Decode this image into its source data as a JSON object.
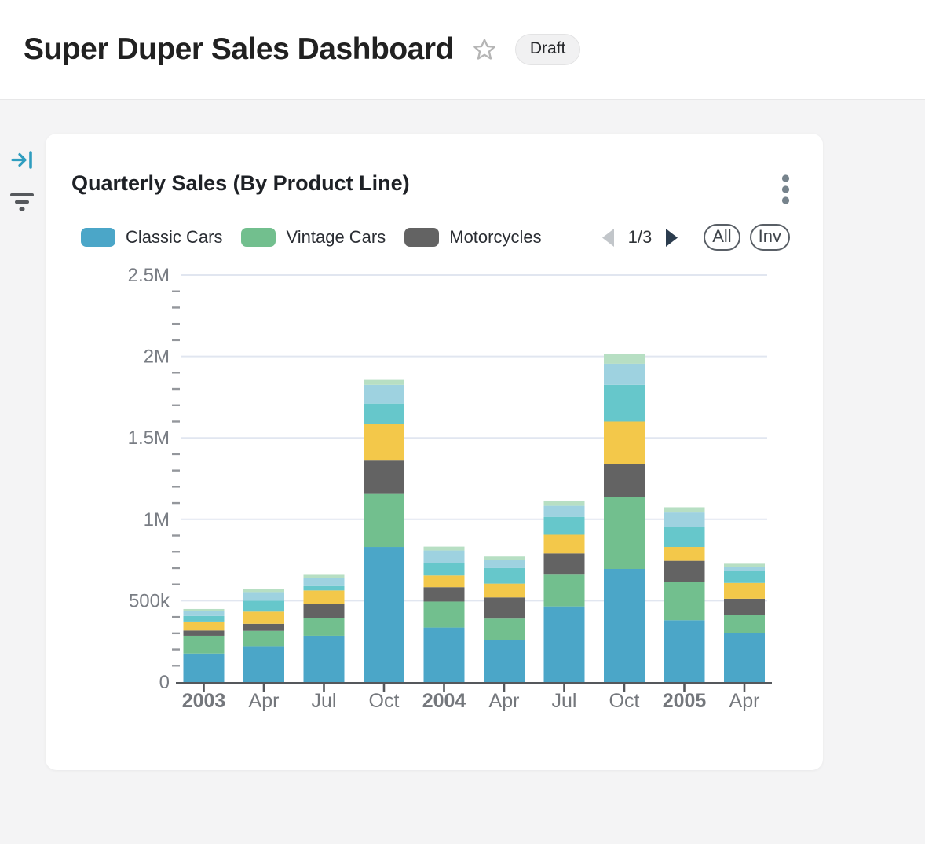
{
  "header": {
    "title": "Super Duper Sales Dashboard",
    "badge": "Draft"
  },
  "rail": {
    "icons": [
      "collapse-panel-right",
      "filter-lines"
    ]
  },
  "card": {
    "title": "Quarterly Sales (By Product Line)",
    "menu_icon": "kebab-vertical",
    "legend": {
      "items": [
        {
          "label": "Classic Cars",
          "color": "#4ba6c8"
        },
        {
          "label": "Vintage Cars",
          "color": "#72bf8e"
        },
        {
          "label": "Motorcycles",
          "color": "#636363"
        }
      ],
      "pagination": {
        "label": "1/3",
        "prev_enabled": false,
        "next_enabled": true
      },
      "buttons": [
        {
          "label": "All"
        },
        {
          "label": "Inv"
        }
      ]
    }
  },
  "chart_data": {
    "type": "bar",
    "stacked": true,
    "title": "Quarterly Sales (By Product Line)",
    "legend_position": "top",
    "legend_note": "legend paginated 1/3; series 4-7 colors visible but unlabeled on this page",
    "grid": true,
    "ylim": [
      0,
      2500000
    ],
    "y_minor_step": 100000,
    "y_ticks": [
      {
        "value": 0,
        "label": "0"
      },
      {
        "value": 500000,
        "label": "500k"
      },
      {
        "value": 1000000,
        "label": "1M"
      },
      {
        "value": 1500000,
        "label": "1.5M"
      },
      {
        "value": 2000000,
        "label": "2M"
      },
      {
        "value": 2500000,
        "label": "2.5M"
      }
    ],
    "categories": [
      "2003",
      "Apr",
      "Jul",
      "Oct",
      "2004",
      "Apr",
      "Jul",
      "Oct",
      "2005",
      "Apr"
    ],
    "series": [
      {
        "name": "Classic Cars",
        "color": "#4ba6c8",
        "values": [
          175000,
          220000,
          285000,
          830000,
          335000,
          260000,
          465000,
          695000,
          380000,
          300000
        ]
      },
      {
        "name": "Vintage Cars",
        "color": "#72bf8e",
        "values": [
          110000,
          95000,
          110000,
          330000,
          160000,
          130000,
          195000,
          440000,
          235000,
          115000
        ]
      },
      {
        "name": "Motorcycles",
        "color": "#636363",
        "values": [
          32000,
          43000,
          83000,
          205000,
          88000,
          130000,
          130000,
          205000,
          130000,
          97000
        ]
      },
      {
        "name": "unlabeled-yellow",
        "color": "#f3c84a",
        "values": [
          55000,
          75000,
          85000,
          220000,
          72000,
          85000,
          115000,
          260000,
          85000,
          97000
        ]
      },
      {
        "name": "unlabeled-teal",
        "color": "#66c7cb",
        "values": [
          34000,
          67000,
          27000,
          125000,
          76000,
          95000,
          110000,
          225000,
          125000,
          72000
        ]
      },
      {
        "name": "unlabeled-lightblue",
        "color": "#9ed2e0",
        "values": [
          29000,
          53000,
          48000,
          115000,
          77000,
          50000,
          68000,
          130000,
          87000,
          25000
        ]
      },
      {
        "name": "unlabeled-palegreen",
        "color": "#b7dfc3",
        "values": [
          14000,
          17000,
          21000,
          35000,
          24000,
          21000,
          32000,
          60000,
          32000,
          21000
        ]
      }
    ]
  }
}
